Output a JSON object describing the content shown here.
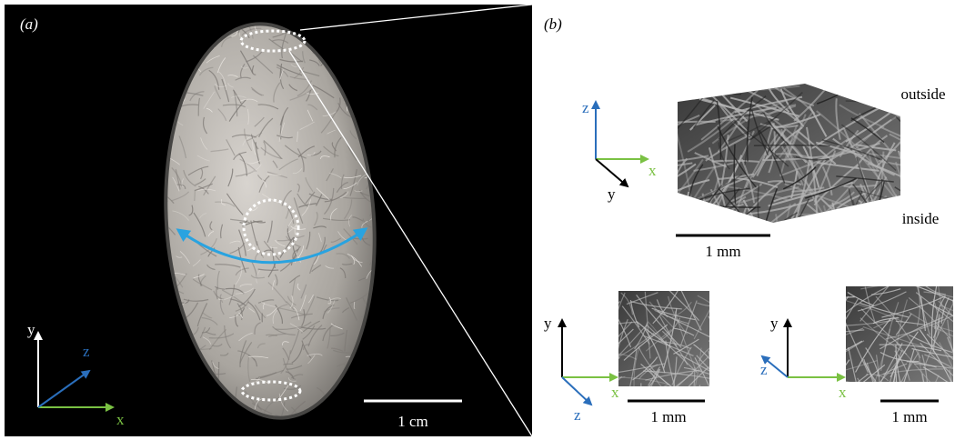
{
  "panel_a": {
    "label": "(a)",
    "axes": {
      "y": "y",
      "z": "z",
      "x": "x"
    },
    "scale_bar": "1 cm"
  },
  "panel_b": {
    "label": "(b)",
    "top": {
      "axes": {
        "z": "z",
        "x": "x",
        "y": "y"
      },
      "scale_bar": "1 mm",
      "outside": "outside",
      "inside": "inside"
    },
    "bottom_left": {
      "axes": {
        "y": "y",
        "x": "x",
        "z": "z"
      },
      "scale_bar": "1 mm"
    },
    "bottom_right": {
      "axes": {
        "y": "y",
        "z": "z",
        "x": "x"
      },
      "scale_bar": "1 mm"
    }
  }
}
